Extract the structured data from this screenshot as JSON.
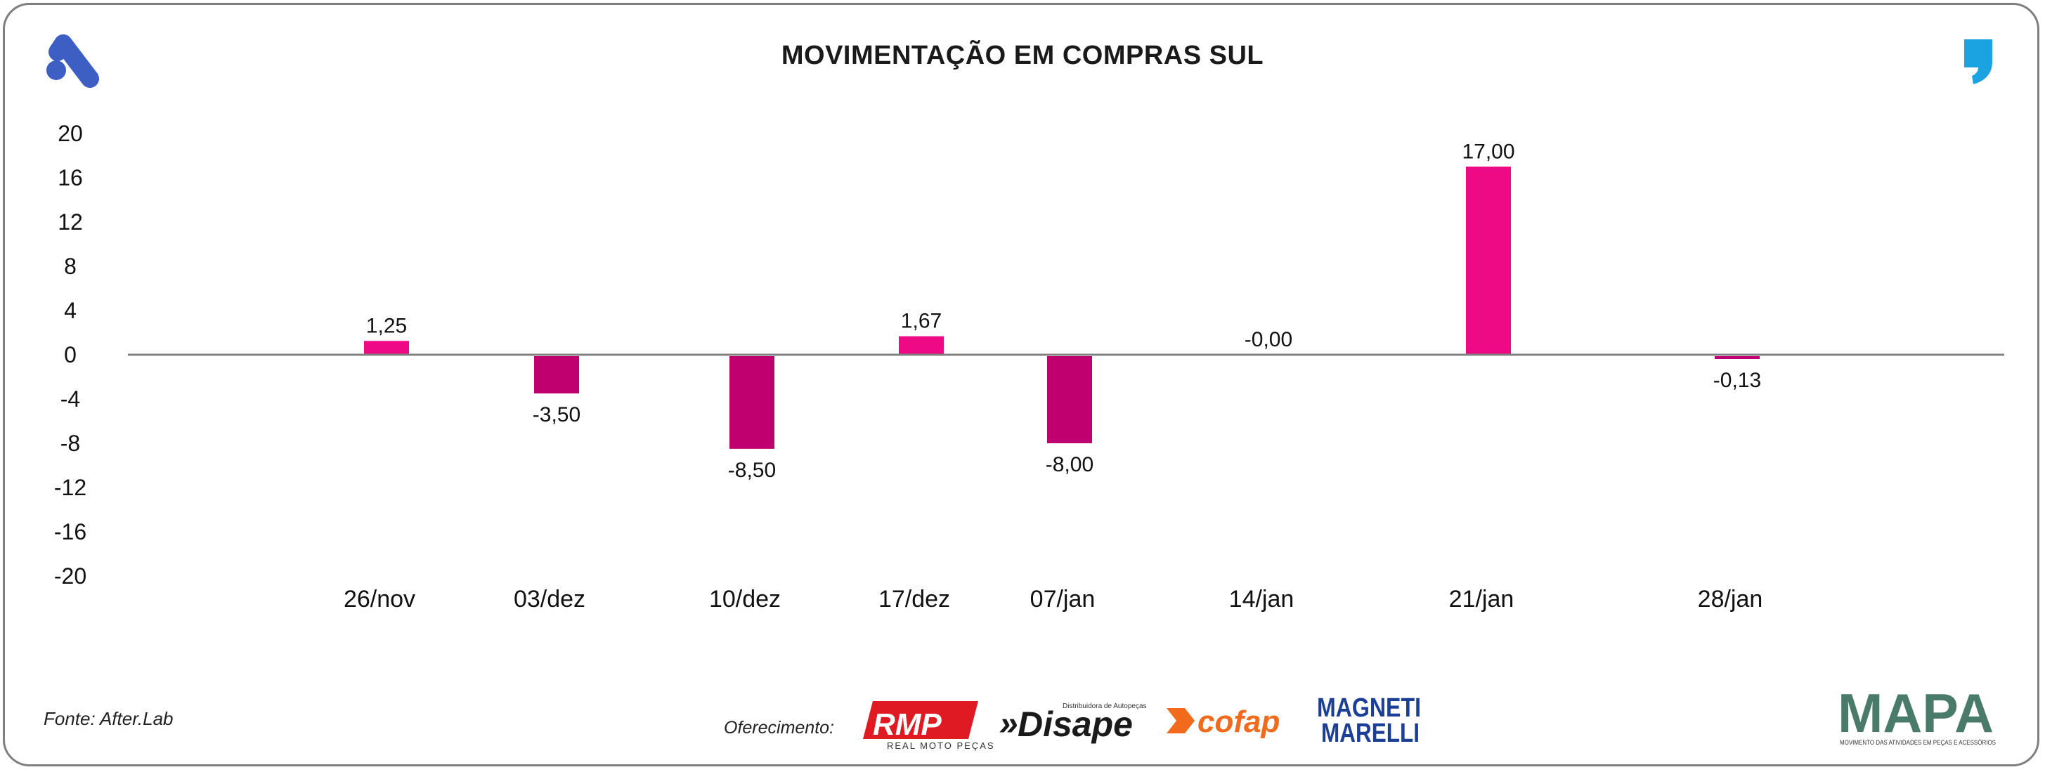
{
  "header": {
    "title": "MOVIMENTAÇÃO EM COMPRAS SUL"
  },
  "footer": {
    "source": "Fonte: After.Lab",
    "sponsor_label": "Oferecimento:",
    "sponsors": [
      {
        "name": "RMP",
        "tagline": "REAL MOTO PEÇAS"
      },
      {
        "name": "Disape",
        "tagline": "Distribuidora de Autopeças"
      },
      {
        "name": "cofap"
      },
      {
        "name": "MAGNETI",
        "name2": "MARELLI"
      }
    ],
    "brand": {
      "name": "MAPA",
      "tagline": "MOVIMENTO DAS ATIVIDADES EM PEÇAS E ACESSÓRIOS"
    }
  },
  "colors": {
    "positive": "#ee0a84",
    "negative": "#c0006f",
    "axis": "#808080",
    "logo_blue": "#3d5fc4",
    "logo_cyan": "#1aa3e0"
  },
  "icons": {
    "top_left": "stylized-a-logo-icon",
    "top_right": "comma-quote-logo-icon"
  },
  "chart_data": {
    "type": "bar",
    "title": "MOVIMENTAÇÃO EM COMPRAS SUL",
    "categories": [
      "26/nov",
      "03/dez",
      "10/dez",
      "17/dez",
      "07/jan",
      "14/jan",
      "21/jan",
      "28/jan"
    ],
    "values": [
      1.25,
      -3.5,
      -8.5,
      1.67,
      -8.0,
      -0.0,
      17.0,
      -0.13
    ],
    "data_labels": [
      "1,25",
      "-3,50",
      "-8,50",
      "1,67",
      "-8,00",
      "-0,00",
      "17,00",
      "-0,13"
    ],
    "yticks": [
      20,
      16,
      12,
      8,
      4,
      0,
      -4,
      -8,
      -12,
      -16,
      -20
    ],
    "ylim": [
      -20,
      20
    ],
    "xlabel": "",
    "ylabel": "",
    "grid": false,
    "legend": "none"
  }
}
